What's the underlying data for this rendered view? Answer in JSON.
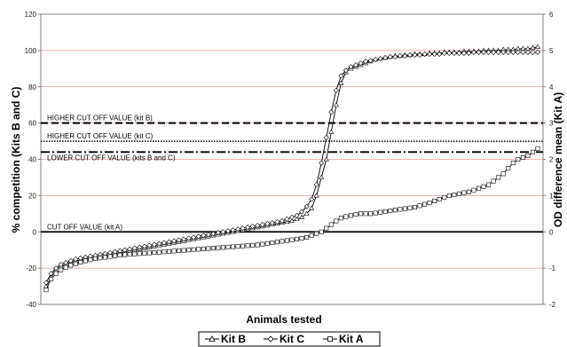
{
  "chart_data": {
    "type": "line",
    "xlabel": "Animals tested",
    "ylabel_left": "% competition (Kits B and C)",
    "ylabel_right": "OD difference mean (Kit A)",
    "y_left": {
      "min": -40,
      "max": 120,
      "ticks": [
        -40,
        -20,
        0,
        20,
        40,
        60,
        80,
        100,
        120
      ]
    },
    "y_right": {
      "min": -2,
      "max": 6,
      "ticks": [
        -2,
        -1,
        0,
        1,
        2,
        3,
        4,
        5,
        6
      ]
    },
    "x": {
      "min": 0,
      "max": 100
    },
    "grid": "horizontal",
    "legend_position": "bottom",
    "reference_lines": [
      {
        "label": "HIGHER CUT OFF VALUE (kit B)",
        "y": 60,
        "style": "dashed"
      },
      {
        "label": "HIGHER CUT OFF VALUE (kit C)",
        "y": 50,
        "style": "dotted"
      },
      {
        "label": "LOWER CUT OFF VALUE (kits B and C)",
        "y": 44,
        "style": "dashdot"
      },
      {
        "label": "CUT OFF VALUE (kit A)",
        "y": 0,
        "style": "solid"
      }
    ],
    "series": [
      {
        "name": "Kit B",
        "marker": "triangle",
        "axis": "left",
        "x": [
          0,
          1,
          2,
          3,
          4,
          5,
          6,
          7,
          8,
          9,
          10,
          11,
          12,
          13,
          14,
          15,
          16,
          17,
          18,
          19,
          20,
          21,
          22,
          23,
          24,
          25,
          26,
          27,
          28,
          29,
          30,
          31,
          32,
          33,
          34,
          35,
          36,
          37,
          38,
          39,
          40,
          41,
          42,
          43,
          44,
          45,
          46,
          47,
          48,
          49,
          50,
          51,
          52,
          53,
          54,
          55,
          56,
          57,
          58,
          59,
          60,
          61,
          62,
          63,
          64,
          65,
          66,
          67,
          68,
          69,
          70,
          71,
          72,
          73,
          74,
          75,
          76,
          77,
          78,
          79,
          80,
          81,
          82,
          83,
          84,
          85,
          86,
          87,
          88,
          89,
          90,
          91,
          92,
          93,
          94,
          95,
          96,
          97,
          98,
          99,
          100
        ],
        "values": [
          -30,
          -25,
          -21,
          -19,
          -18,
          -17,
          -16,
          -15.5,
          -15,
          -14.5,
          -14,
          -13.5,
          -13,
          -12.5,
          -12,
          -11.5,
          -11,
          -10.5,
          -10,
          -9.5,
          -9,
          -8.5,
          -8,
          -7.5,
          -7,
          -6.5,
          -6,
          -5.5,
          -5,
          -4.5,
          -4,
          -3.5,
          -3,
          -2.5,
          -2,
          -1.5,
          -1,
          -0.5,
          0,
          0.5,
          1,
          1.5,
          2,
          2.5,
          3,
          3.5,
          4,
          4.5,
          5,
          5.5,
          6,
          7,
          8,
          10,
          13,
          20,
          30,
          40,
          55,
          70,
          82,
          88,
          90,
          91,
          92,
          93,
          94,
          95,
          95.5,
          96,
          96.5,
          97,
          97,
          97.5,
          97.5,
          98,
          98,
          98,
          98.5,
          98.5,
          98.5,
          99,
          99,
          99,
          99,
          99.5,
          99.5,
          99.5,
          99.5,
          100,
          100,
          100,
          100,
          100.5,
          100.5,
          100.5,
          101,
          101,
          101,
          101.5,
          102
        ]
      },
      {
        "name": "Kit C",
        "marker": "diamond",
        "axis": "left",
        "x": [
          0,
          1,
          2,
          3,
          4,
          5,
          6,
          7,
          8,
          9,
          10,
          11,
          12,
          13,
          14,
          15,
          16,
          17,
          18,
          19,
          20,
          21,
          22,
          23,
          24,
          25,
          26,
          27,
          28,
          29,
          30,
          31,
          32,
          33,
          34,
          35,
          36,
          37,
          38,
          39,
          40,
          41,
          42,
          43,
          44,
          45,
          46,
          47,
          48,
          49,
          50,
          51,
          52,
          53,
          54,
          55,
          56,
          57,
          58,
          59,
          60,
          61,
          62,
          63,
          64,
          65,
          66,
          67,
          68,
          69,
          70,
          71,
          72,
          73,
          74,
          75,
          76,
          77,
          78,
          79,
          80,
          81,
          82,
          83,
          84,
          85,
          86,
          87,
          88,
          89,
          90,
          91,
          92,
          93,
          94,
          95,
          96,
          97,
          98,
          99,
          100
        ],
        "values": [
          -28,
          -23,
          -20,
          -18,
          -17,
          -16,
          -15,
          -14.5,
          -14,
          -13.5,
          -13,
          -12.5,
          -12,
          -11.5,
          -11,
          -10.5,
          -10,
          -9.5,
          -9,
          -8.5,
          -8,
          -7.5,
          -7,
          -6.5,
          -6,
          -5.5,
          -5,
          -4.5,
          -4,
          -3.5,
          -3,
          -2.5,
          -2,
          -1.5,
          -1,
          -0.5,
          0,
          0.5,
          1,
          1.5,
          2,
          2.5,
          3,
          3.5,
          4,
          4.5,
          5,
          5.5,
          6,
          7,
          8,
          9,
          11,
          14,
          18,
          26,
          38,
          52,
          66,
          78,
          86,
          89,
          91,
          92,
          93,
          94,
          94.5,
          95,
          95.5,
          96,
          96.5,
          96.5,
          97,
          97,
          97.5,
          97.5,
          97.5,
          98,
          98,
          98,
          98,
          98.5,
          98.5,
          98.5,
          98.5,
          98.5,
          98.5,
          99,
          99,
          99,
          99,
          99,
          99,
          99,
          99,
          99,
          99,
          99,
          99,
          99,
          99
        ]
      },
      {
        "name": "Kit A",
        "marker": "square",
        "axis": "right",
        "x": [
          0,
          1,
          2,
          3,
          4,
          5,
          6,
          7,
          8,
          9,
          10,
          11,
          12,
          13,
          14,
          15,
          16,
          17,
          18,
          19,
          20,
          21,
          22,
          23,
          24,
          25,
          26,
          27,
          28,
          29,
          30,
          31,
          32,
          33,
          34,
          35,
          36,
          37,
          38,
          39,
          40,
          41,
          42,
          43,
          44,
          45,
          46,
          47,
          48,
          49,
          50,
          51,
          52,
          53,
          54,
          55,
          56,
          57,
          58,
          59,
          60,
          61,
          62,
          63,
          64,
          65,
          66,
          67,
          68,
          69,
          70,
          71,
          72,
          73,
          74,
          75,
          76,
          77,
          78,
          79,
          80,
          81,
          82,
          83,
          84,
          85,
          86,
          87,
          88,
          89,
          90,
          91,
          92,
          93,
          94,
          95,
          96,
          97,
          98,
          99,
          100
        ],
        "values": [
          -1.6,
          -1.3,
          -1.15,
          -1.05,
          -0.98,
          -0.92,
          -0.88,
          -0.84,
          -0.8,
          -0.77,
          -0.74,
          -0.72,
          -0.7,
          -0.68,
          -0.66,
          -0.64,
          -0.63,
          -0.62,
          -0.61,
          -0.6,
          -0.59,
          -0.58,
          -0.57,
          -0.56,
          -0.55,
          -0.54,
          -0.53,
          -0.52,
          -0.51,
          -0.5,
          -0.49,
          -0.48,
          -0.47,
          -0.46,
          -0.45,
          -0.44,
          -0.43,
          -0.42,
          -0.41,
          -0.4,
          -0.39,
          -0.38,
          -0.37,
          -0.36,
          -0.34,
          -0.32,
          -0.3,
          -0.28,
          -0.26,
          -0.24,
          -0.22,
          -0.2,
          -0.18,
          -0.15,
          -0.1,
          -0.05,
          0,
          0.1,
          0.2,
          0.3,
          0.38,
          0.42,
          0.45,
          0.48,
          0.5,
          0.5,
          0.5,
          0.52,
          0.54,
          0.56,
          0.58,
          0.6,
          0.62,
          0.64,
          0.66,
          0.68,
          0.72,
          0.76,
          0.8,
          0.85,
          0.9,
          0.95,
          1.0,
          1.02,
          1.05,
          1.08,
          1.1,
          1.15,
          1.2,
          1.25,
          1.3,
          1.4,
          1.5,
          1.6,
          1.75,
          1.9,
          2.0,
          2.05,
          2.1,
          2.2,
          2.3
        ]
      }
    ],
    "colors": {
      "line": "#000000",
      "grid": "#e06666",
      "marker_fill": "#ffffff"
    }
  }
}
